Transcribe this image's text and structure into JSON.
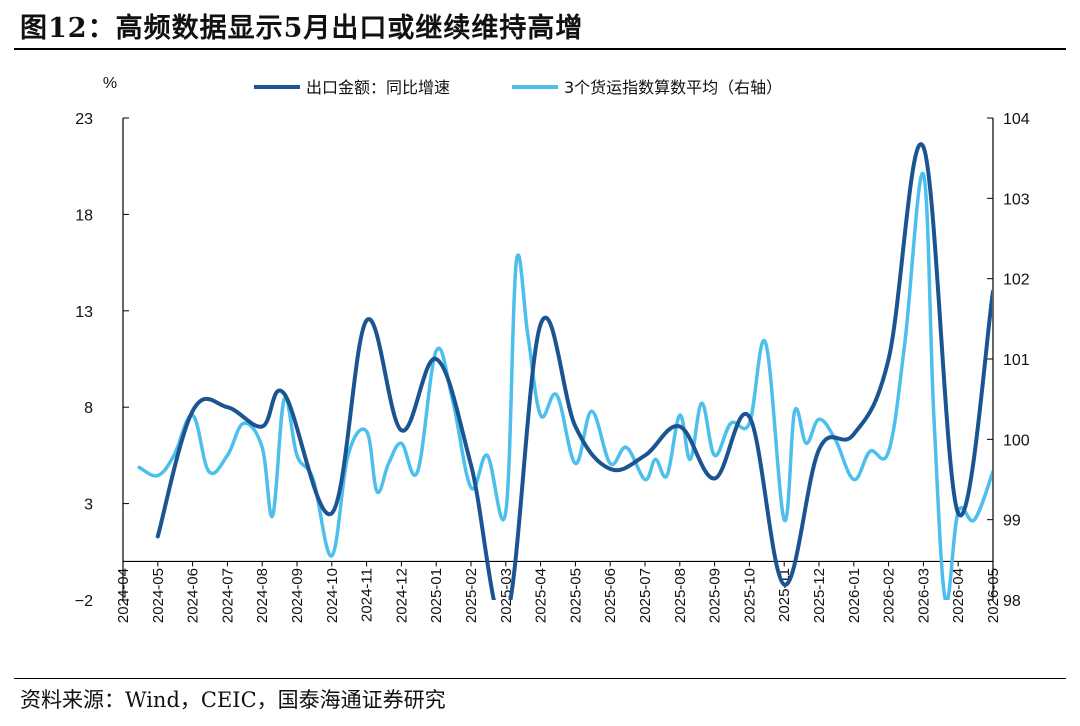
{
  "header": {
    "title": "图12：高频数据显示5月出口或继续维持高增"
  },
  "footer": {
    "source": "资料来源：Wind，CEIC，国泰海通证券研究"
  },
  "colors": {
    "series1": "#1a5592",
    "series2": "#4dbfec",
    "axis": "#000000"
  },
  "chart_data": {
    "type": "line",
    "title": "图12：高频数据显示5月出口或继续维持高增",
    "y_left_unit": "%",
    "y_left_range": [
      -2,
      23
    ],
    "y_left_ticks": [
      -2,
      3,
      8,
      13,
      18,
      23
    ],
    "y_right_range": [
      98,
      104
    ],
    "y_right_ticks": [
      98,
      99,
      100,
      101,
      102,
      103,
      104
    ],
    "x_range": [
      "2024-04",
      "2026-05"
    ],
    "x_ticks": [
      "2024-04",
      "2024-05",
      "2024-06",
      "2024-07",
      "2024-08",
      "2024-09",
      "2024-10",
      "2024-11",
      "2024-12",
      "2025-01",
      "2025-02",
      "2025-03",
      "2025-04",
      "2025-05",
      "2025-06",
      "2025-07",
      "2025-08",
      "2025-09",
      "2025-10",
      "2025-11",
      "2025-12",
      "2026-01",
      "2026-02",
      "2026-03",
      "2026-04",
      "2026-05"
    ],
    "legend_position": "top-center",
    "series": [
      {
        "name": "出口金额：同比增速",
        "axis": "left",
        "smooth": true,
        "points": [
          [
            "2024-05",
            1.3
          ],
          [
            "2024-06",
            7.8
          ],
          [
            "2024-07",
            8.0
          ],
          [
            "2024-08",
            7.0
          ],
          [
            "2024-08-20",
            8.7
          ],
          [
            "2024-10",
            2.5
          ],
          [
            "2024-11",
            12.5
          ],
          [
            "2024-12",
            6.8
          ],
          [
            "2025-01",
            10.5
          ],
          [
            "2025-02",
            5.0
          ],
          [
            "2025-03",
            -3.0
          ],
          [
            "2025-04",
            12.3
          ],
          [
            "2025-05",
            7.0
          ],
          [
            "2025-06",
            4.8
          ],
          [
            "2025-07",
            5.5
          ],
          [
            "2025-08",
            7.0
          ],
          [
            "2025-09",
            4.3
          ],
          [
            "2025-10",
            7.5
          ],
          [
            "2025-11",
            -1.2
          ],
          [
            "2025-12",
            5.8
          ],
          [
            "2026-01",
            6.6
          ],
          [
            "2026-02",
            10.5
          ],
          [
            "2026-03",
            21.5
          ],
          [
            "2026-04",
            2.5
          ],
          [
            "2026-05",
            14.0
          ]
        ]
      },
      {
        "name": "3个货运指数算数平均（右轴）",
        "axis": "right",
        "smooth": false,
        "points": [
          [
            "2024-04-15",
            99.65
          ],
          [
            "2024-05",
            99.55
          ],
          [
            "2024-05-15",
            99.8
          ],
          [
            "2024-06",
            100.3
          ],
          [
            "2024-06-15",
            99.6
          ],
          [
            "2024-07",
            99.8
          ],
          [
            "2024-07-15",
            100.2
          ],
          [
            "2024-08",
            99.9
          ],
          [
            "2024-08-10",
            99.05
          ],
          [
            "2024-08-20",
            100.5
          ],
          [
            "2024-09",
            99.8
          ],
          [
            "2024-09-15",
            99.5
          ],
          [
            "2024-10",
            98.55
          ],
          [
            "2024-10-15",
            99.8
          ],
          [
            "2024-11",
            100.1
          ],
          [
            "2024-11-10",
            99.35
          ],
          [
            "2024-11-20",
            99.7
          ],
          [
            "2024-12",
            99.95
          ],
          [
            "2024-12-15",
            99.6
          ],
          [
            "2025-01",
            101.1
          ],
          [
            "2025-01-15",
            100.5
          ],
          [
            "2025-02",
            99.4
          ],
          [
            "2025-02-15",
            99.8
          ],
          [
            "2025-03",
            99.1
          ],
          [
            "2025-03-10",
            102.2
          ],
          [
            "2025-03-20",
            101.3
          ],
          [
            "2025-04",
            100.3
          ],
          [
            "2025-04-15",
            100.55
          ],
          [
            "2025-05",
            99.7
          ],
          [
            "2025-05-15",
            100.35
          ],
          [
            "2025-06",
            99.7
          ],
          [
            "2025-06-15",
            99.9
          ],
          [
            "2025-07",
            99.5
          ],
          [
            "2025-07-10",
            99.75
          ],
          [
            "2025-07-20",
            99.55
          ],
          [
            "2025-08",
            100.3
          ],
          [
            "2025-08-10",
            99.75
          ],
          [
            "2025-08-20",
            100.45
          ],
          [
            "2025-09",
            99.8
          ],
          [
            "2025-09-15",
            100.2
          ],
          [
            "2025-10",
            100.2
          ],
          [
            "2025-10-15",
            101.2
          ],
          [
            "2025-11",
            99.0
          ],
          [
            "2025-11-10",
            100.35
          ],
          [
            "2025-11-20",
            99.95
          ],
          [
            "2025-12",
            100.25
          ],
          [
            "2025-12-15",
            100.0
          ],
          [
            "2026-01",
            99.5
          ],
          [
            "2026-01-15",
            99.85
          ],
          [
            "2026-02",
            99.85
          ],
          [
            "2026-02-15",
            101.2
          ],
          [
            "2026-03",
            103.3
          ],
          [
            "2026-03-10",
            100.3
          ],
          [
            "2026-03-20",
            98.0
          ],
          [
            "2026-04",
            99.1
          ],
          [
            "2026-04-15",
            99.0
          ],
          [
            "2026-05",
            99.6
          ]
        ]
      }
    ]
  }
}
